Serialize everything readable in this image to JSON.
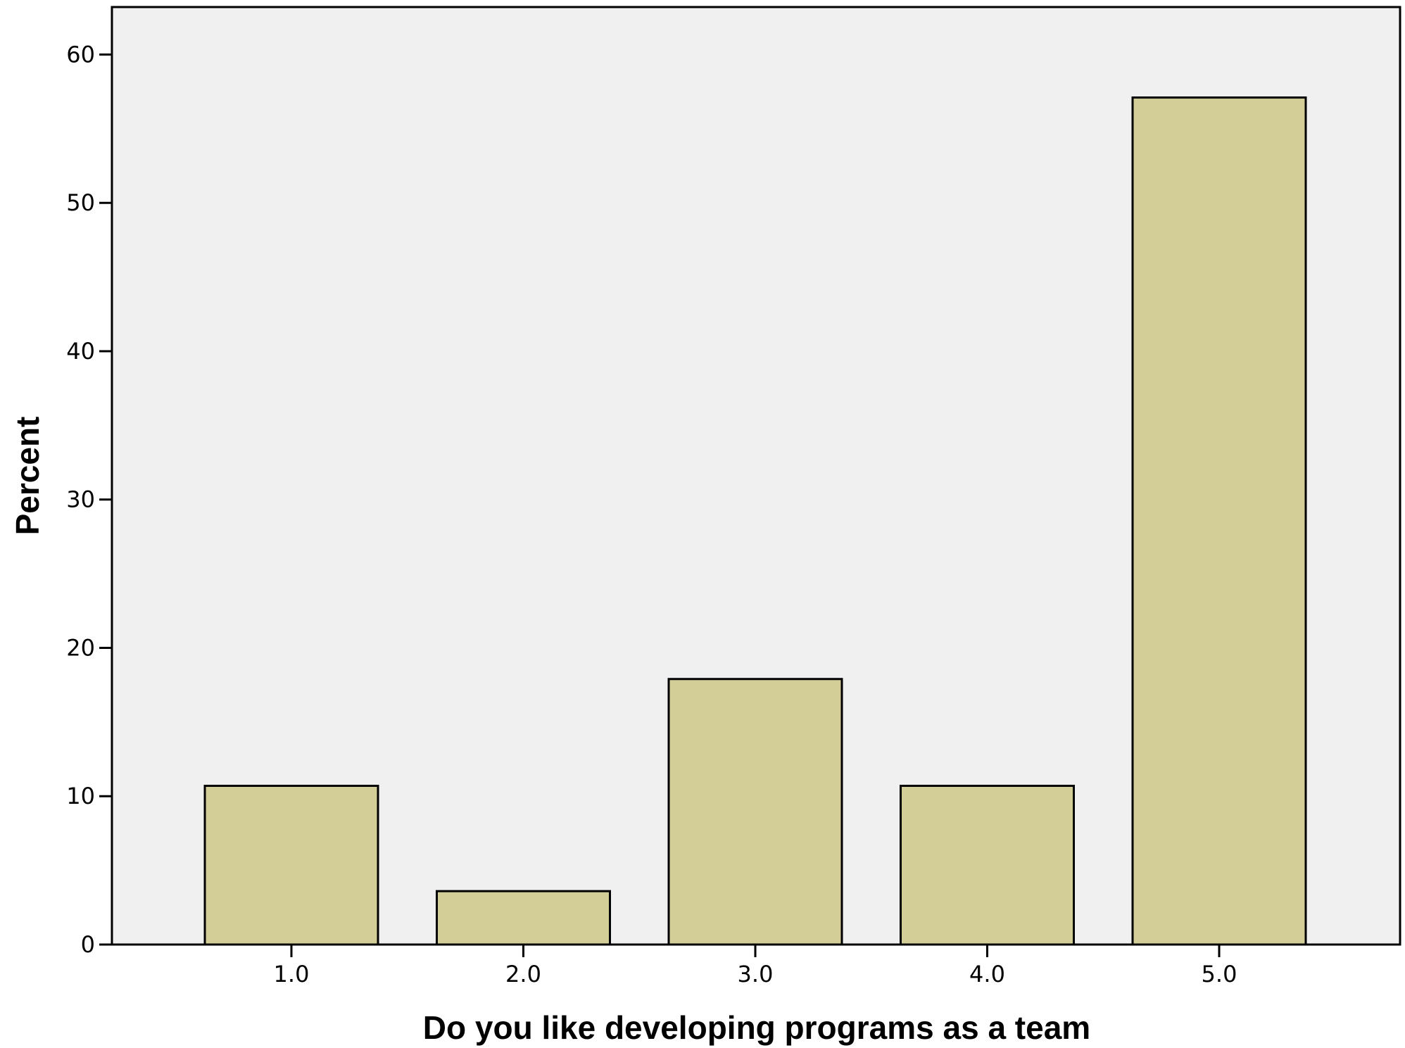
{
  "chart_data": {
    "type": "bar",
    "categories": [
      "1.0",
      "2.0",
      "3.0",
      "4.0",
      "5.0"
    ],
    "values": [
      10.7,
      3.6,
      17.9,
      10.7,
      57.1
    ],
    "xlabel": "Do you like developing programs as a team",
    "ylabel": "Percent",
    "ylim": [
      0,
      63.2
    ],
    "yticks": [
      0,
      10,
      20,
      30,
      40,
      50,
      60
    ],
    "ytick_labels": [
      "0",
      "10",
      "20",
      "30",
      "40",
      "50",
      "60"
    ],
    "grid": false,
    "legend": "none",
    "colors": {
      "plot_background": "#F0F0F0",
      "bar_fill": "#D3CE97",
      "bar_stroke": "#000000",
      "axis": "#000000"
    }
  }
}
